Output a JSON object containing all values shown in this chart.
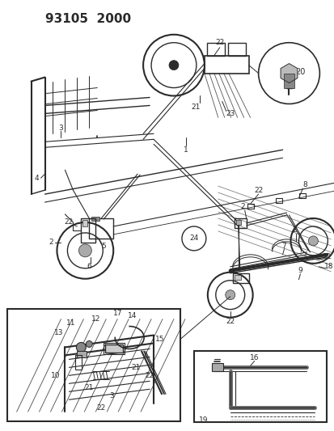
{
  "title": "93105  2000",
  "bg_color": "#ffffff",
  "line_color": "#2a2a2a",
  "title_fontsize": 11,
  "label_fontsize": 6.5,
  "fig_width": 4.14,
  "fig_height": 5.33,
  "dpi": 100
}
